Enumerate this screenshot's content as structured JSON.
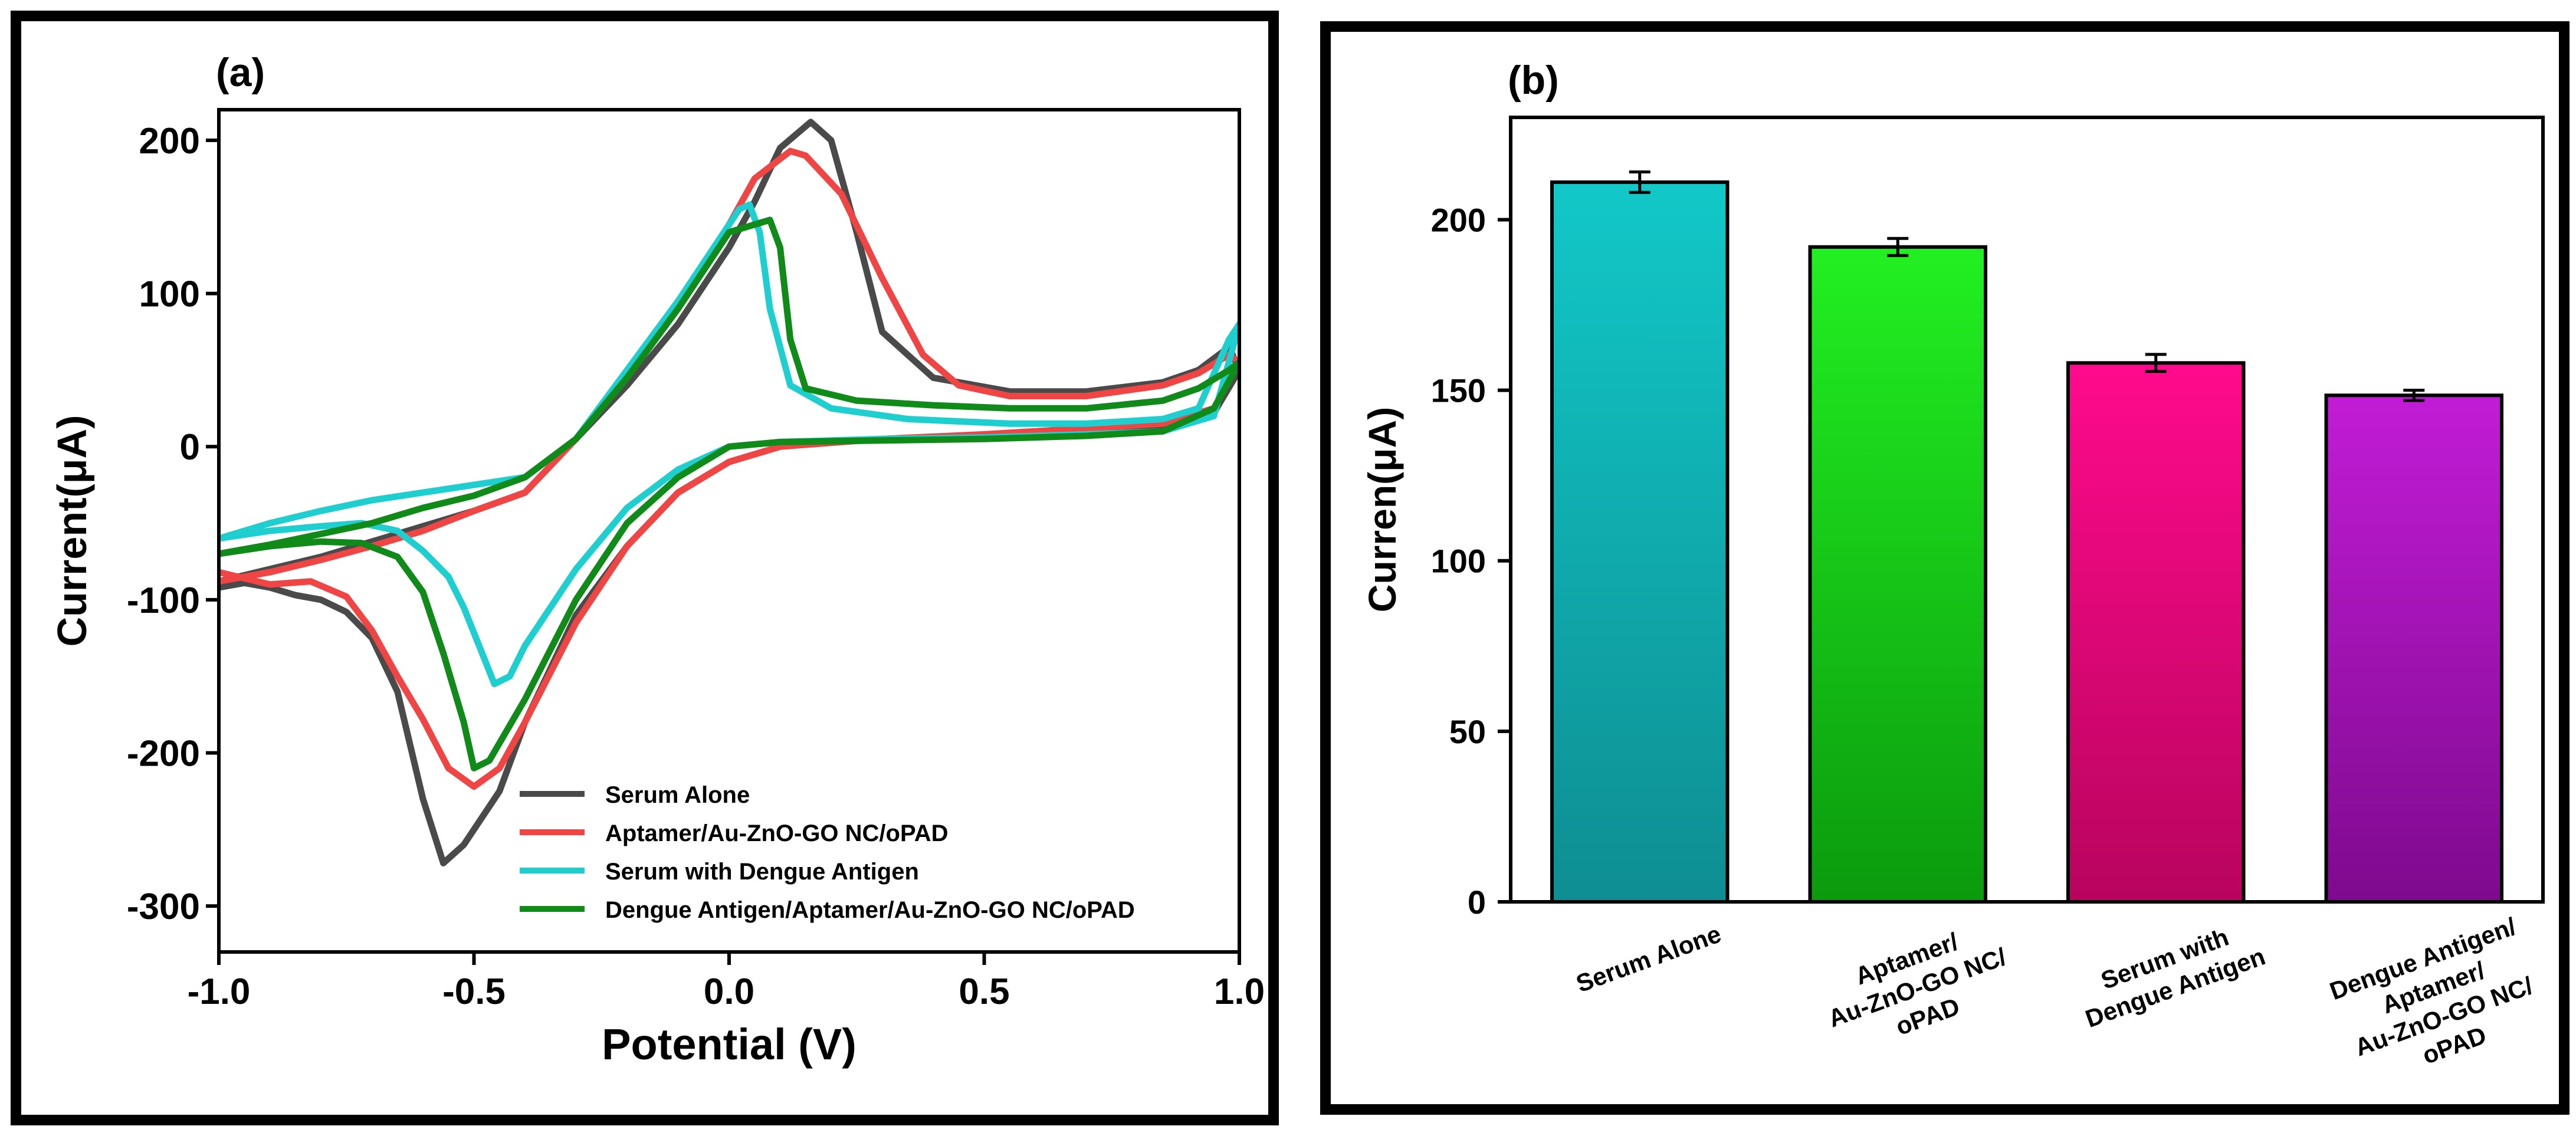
{
  "chart_data": [
    {
      "type": "line",
      "panel_label": "(a)",
      "xlabel": "Potential (V)",
      "ylabel": "Current(μA)",
      "xlim": [
        -1.0,
        1.0
      ],
      "ylim": [
        -330,
        220
      ],
      "xticks": [
        -1.0,
        -0.5,
        0.0,
        0.5,
        1.0
      ],
      "xtick_labels": [
        "-1.0",
        "-0.5",
        "0.0",
        "0.5",
        "1.0"
      ],
      "yticks": [
        -300,
        -200,
        -100,
        0,
        100,
        200
      ],
      "ytick_labels": [
        "-300",
        "-200",
        "-100",
        "0",
        "100",
        "200"
      ],
      "legend_position": "lower-right",
      "series": [
        {
          "name": "Serum Alone",
          "color": "#4a4a4a",
          "points": [
            [
              -1.0,
              -92
            ],
            [
              -0.95,
              -89
            ],
            [
              -0.9,
              -92
            ],
            [
              -0.85,
              -97
            ],
            [
              -0.8,
              -100
            ],
            [
              -0.75,
              -108
            ],
            [
              -0.7,
              -125
            ],
            [
              -0.65,
              -160
            ],
            [
              -0.6,
              -230
            ],
            [
              -0.56,
              -272
            ],
            [
              -0.52,
              -260
            ],
            [
              -0.45,
              -225
            ],
            [
              -0.4,
              -180
            ],
            [
              -0.3,
              -110
            ],
            [
              -0.2,
              -65
            ],
            [
              -0.1,
              -30
            ],
            [
              0.0,
              -10
            ],
            [
              0.1,
              0
            ],
            [
              0.3,
              5
            ],
            [
              0.5,
              7
            ],
            [
              0.7,
              10
            ],
            [
              0.85,
              14
            ],
            [
              0.95,
              22
            ],
            [
              1.0,
              50
            ],
            [
              0.98,
              65
            ],
            [
              0.92,
              50
            ],
            [
              0.85,
              42
            ],
            [
              0.7,
              36
            ],
            [
              0.55,
              36
            ],
            [
              0.4,
              45
            ],
            [
              0.3,
              75
            ],
            [
              0.25,
              140
            ],
            [
              0.2,
              200
            ],
            [
              0.16,
              212
            ],
            [
              0.1,
              195
            ],
            [
              0.05,
              160
            ],
            [
              0.0,
              130
            ],
            [
              -0.1,
              80
            ],
            [
              -0.2,
              40
            ],
            [
              -0.3,
              5
            ],
            [
              -0.4,
              -30
            ],
            [
              -0.5,
              -42
            ],
            [
              -0.6,
              -52
            ],
            [
              -0.7,
              -62
            ],
            [
              -0.8,
              -72
            ],
            [
              -0.9,
              -80
            ],
            [
              -1.0,
              -88
            ]
          ]
        },
        {
          "name": "Aptamer/Au-ZnO-GO NC/oPAD",
          "color": "#f04545",
          "points": [
            [
              -1.0,
              -82
            ],
            [
              -0.9,
              -90
            ],
            [
              -0.82,
              -88
            ],
            [
              -0.75,
              -98
            ],
            [
              -0.7,
              -120
            ],
            [
              -0.65,
              -150
            ],
            [
              -0.6,
              -178
            ],
            [
              -0.55,
              -210
            ],
            [
              -0.5,
              -222
            ],
            [
              -0.45,
              -210
            ],
            [
              -0.4,
              -180
            ],
            [
              -0.3,
              -115
            ],
            [
              -0.2,
              -65
            ],
            [
              -0.1,
              -30
            ],
            [
              0.0,
              -10
            ],
            [
              0.1,
              0
            ],
            [
              0.3,
              5
            ],
            [
              0.5,
              8
            ],
            [
              0.7,
              12
            ],
            [
              0.85,
              15
            ],
            [
              0.95,
              25
            ],
            [
              1.0,
              55
            ],
            [
              0.98,
              60
            ],
            [
              0.92,
              48
            ],
            [
              0.85,
              40
            ],
            [
              0.7,
              33
            ],
            [
              0.55,
              33
            ],
            [
              0.45,
              40
            ],
            [
              0.38,
              60
            ],
            [
              0.3,
              110
            ],
            [
              0.22,
              165
            ],
            [
              0.15,
              190
            ],
            [
              0.12,
              193
            ],
            [
              0.05,
              175
            ],
            [
              0.0,
              145
            ],
            [
              -0.1,
              90
            ],
            [
              -0.2,
              45
            ],
            [
              -0.3,
              5
            ],
            [
              -0.4,
              -30
            ],
            [
              -0.5,
              -42
            ],
            [
              -0.6,
              -55
            ],
            [
              -0.7,
              -65
            ],
            [
              -0.8,
              -74
            ],
            [
              -0.9,
              -82
            ],
            [
              -1.0,
              -88
            ]
          ]
        },
        {
          "name": "Serum with Dengue Antigen",
          "color": "#1fcfd0",
          "points": [
            [
              -1.0,
              -60
            ],
            [
              -0.9,
              -55
            ],
            [
              -0.8,
              -52
            ],
            [
              -0.72,
              -50
            ],
            [
              -0.65,
              -55
            ],
            [
              -0.6,
              -68
            ],
            [
              -0.55,
              -85
            ],
            [
              -0.52,
              -105
            ],
            [
              -0.49,
              -130
            ],
            [
              -0.46,
              -155
            ],
            [
              -0.43,
              -150
            ],
            [
              -0.4,
              -130
            ],
            [
              -0.3,
              -80
            ],
            [
              -0.2,
              -40
            ],
            [
              -0.1,
              -15
            ],
            [
              0.0,
              0
            ],
            [
              0.1,
              3
            ],
            [
              0.3,
              5
            ],
            [
              0.5,
              6
            ],
            [
              0.7,
              8
            ],
            [
              0.85,
              10
            ],
            [
              0.95,
              20
            ],
            [
              1.0,
              80
            ],
            [
              0.98,
              70
            ],
            [
              0.92,
              25
            ],
            [
              0.85,
              18
            ],
            [
              0.7,
              15
            ],
            [
              0.55,
              15
            ],
            [
              0.35,
              18
            ],
            [
              0.2,
              25
            ],
            [
              0.12,
              40
            ],
            [
              0.08,
              90
            ],
            [
              0.06,
              140
            ],
            [
              0.04,
              158
            ],
            [
              0.02,
              155
            ],
            [
              0.0,
              145
            ],
            [
              -0.1,
              95
            ],
            [
              -0.2,
              50
            ],
            [
              -0.3,
              5
            ],
            [
              -0.4,
              -20
            ],
            [
              -0.5,
              -25
            ],
            [
              -0.6,
              -30
            ],
            [
              -0.7,
              -35
            ],
            [
              -0.8,
              -42
            ],
            [
              -0.9,
              -50
            ],
            [
              -1.0,
              -60
            ]
          ]
        },
        {
          "name": "Dengue Antigen/Aptamer/Au-ZnO-GO NC/oPAD",
          "color": "#108a18",
          "points": [
            [
              -1.0,
              -70
            ],
            [
              -0.9,
              -65
            ],
            [
              -0.8,
              -62
            ],
            [
              -0.72,
              -63
            ],
            [
              -0.65,
              -72
            ],
            [
              -0.6,
              -95
            ],
            [
              -0.56,
              -135
            ],
            [
              -0.52,
              -180
            ],
            [
              -0.5,
              -210
            ],
            [
              -0.47,
              -205
            ],
            [
              -0.4,
              -165
            ],
            [
              -0.3,
              -100
            ],
            [
              -0.2,
              -50
            ],
            [
              -0.1,
              -20
            ],
            [
              0.0,
              0
            ],
            [
              0.1,
              3
            ],
            [
              0.3,
              4
            ],
            [
              0.5,
              5
            ],
            [
              0.7,
              7
            ],
            [
              0.85,
              10
            ],
            [
              0.95,
              25
            ],
            [
              1.0,
              55
            ],
            [
              0.98,
              50
            ],
            [
              0.92,
              38
            ],
            [
              0.85,
              30
            ],
            [
              0.7,
              25
            ],
            [
              0.55,
              25
            ],
            [
              0.4,
              27
            ],
            [
              0.25,
              30
            ],
            [
              0.15,
              38
            ],
            [
              0.12,
              70
            ],
            [
              0.1,
              130
            ],
            [
              0.08,
              148
            ],
            [
              0.05,
              145
            ],
            [
              0.0,
              140
            ],
            [
              -0.1,
              90
            ],
            [
              -0.2,
              45
            ],
            [
              -0.3,
              5
            ],
            [
              -0.4,
              -20
            ],
            [
              -0.5,
              -32
            ],
            [
              -0.6,
              -40
            ],
            [
              -0.7,
              -50
            ],
            [
              -0.8,
              -57
            ],
            [
              -0.9,
              -64
            ],
            [
              -1.0,
              -70
            ]
          ]
        }
      ]
    },
    {
      "type": "bar",
      "panel_label": "(b)",
      "xlabel": "",
      "ylabel": "Curren(μA)",
      "ylim": [
        0,
        230
      ],
      "yticks": [
        0,
        50,
        100,
        150,
        200
      ],
      "ytick_labels": [
        "0",
        "50",
        "100",
        "150",
        "200"
      ],
      "categories": [
        [
          "Serum Alone"
        ],
        [
          "Aptamer/",
          "Au-ZnO-GO NC/",
          "oPAD"
        ],
        [
          "Serum with",
          "Dengue Antigen"
        ],
        [
          "Dengue Antigen/",
          "Aptamer/",
          "Au-ZnO-GO NC/",
          "oPAD"
        ]
      ],
      "values": [
        211,
        192,
        158,
        148.5
      ],
      "errors": [
        3,
        2.5,
        2.5,
        1.5
      ],
      "colors": [
        [
          "#12c8c8",
          "#0e8e92"
        ],
        [
          "#22f022",
          "#0b9a0d"
        ],
        [
          "#ff0a8c",
          "#b8045e"
        ],
        [
          "#c21cd6",
          "#7e0a8e"
        ]
      ]
    }
  ]
}
